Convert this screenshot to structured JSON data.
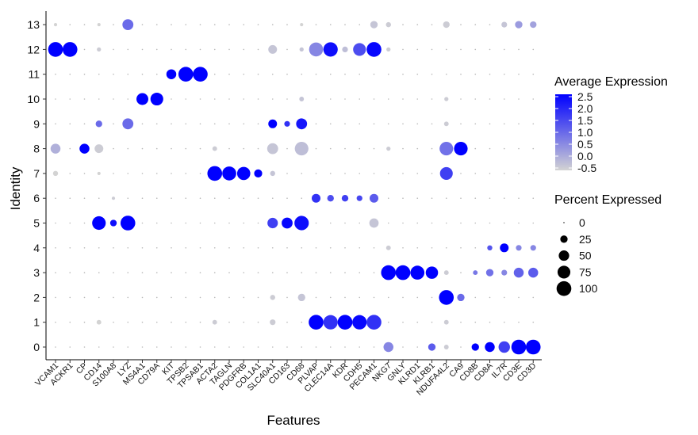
{
  "chart_data": {
    "type": "dotplot",
    "xlabel": "Features",
    "ylabel": "Identity",
    "features": [
      "VCAM1",
      "ACKR1",
      "CP",
      "CD14",
      "S100A8",
      "LYZ",
      "MS4A1",
      "CD79A",
      "KIT",
      "TPSB2",
      "TPSAB1",
      "ACTA2",
      "TAGLN",
      "PDGFRB",
      "COL1A1",
      "SLC40A1",
      "CD163",
      "CD68",
      "PLVAP",
      "CLEC14A",
      "KDR",
      "CDH5",
      "PECAM1",
      "NKG7",
      "GNLY",
      "KLRD1",
      "KLRB1",
      "NDUFA4L2",
      "CA9",
      "CD8B",
      "CD8A",
      "IL7R",
      "CD3E",
      "CD3D"
    ],
    "identities": [
      "0",
      "1",
      "2",
      "3",
      "4",
      "5",
      "6",
      "7",
      "8",
      "9",
      "10",
      "11",
      "12",
      "13"
    ],
    "dots": [
      {
        "id": "12",
        "f": "VCAM1",
        "avg": 2.5,
        "pct": 100
      },
      {
        "id": "12",
        "f": "ACKR1",
        "avg": 2.5,
        "pct": 100
      },
      {
        "id": "12",
        "f": "CD14",
        "avg": -0.4,
        "pct": 8
      },
      {
        "id": "12",
        "f": "SLC40A1",
        "avg": -0.3,
        "pct": 35
      },
      {
        "id": "12",
        "f": "CD68",
        "avg": -0.3,
        "pct": 8
      },
      {
        "id": "12",
        "f": "PLVAP",
        "avg": 0.6,
        "pct": 90
      },
      {
        "id": "12",
        "f": "CLEC14A",
        "avg": 2.3,
        "pct": 95
      },
      {
        "id": "12",
        "f": "KDR",
        "avg": -0.2,
        "pct": 15
      },
      {
        "id": "12",
        "f": "CDH5",
        "avg": 1.4,
        "pct": 75
      },
      {
        "id": "12",
        "f": "PECAM1",
        "avg": 2.4,
        "pct": 100
      },
      {
        "id": "12",
        "f": "NKG7",
        "avg": -0.4,
        "pct": 8
      },
      {
        "id": "13",
        "f": "VCAM1",
        "avg": -0.5,
        "pct": 5
      },
      {
        "id": "13",
        "f": "CD14",
        "avg": -0.5,
        "pct": 5
      },
      {
        "id": "13",
        "f": "LYZ",
        "avg": 1.0,
        "pct": 55
      },
      {
        "id": "13",
        "f": "CD68",
        "avg": -0.5,
        "pct": 5
      },
      {
        "id": "13",
        "f": "PECAM1",
        "avg": -0.3,
        "pct": 25
      },
      {
        "id": "13",
        "f": "NKG7",
        "avg": -0.4,
        "pct": 12
      },
      {
        "id": "13",
        "f": "NDUFA4L2",
        "avg": -0.4,
        "pct": 20
      },
      {
        "id": "13",
        "f": "IL7R",
        "avg": -0.3,
        "pct": 15
      },
      {
        "id": "13",
        "f": "CD3E",
        "avg": 0.3,
        "pct": 25
      },
      {
        "id": "13",
        "f": "CD3D",
        "avg": 0.2,
        "pct": 20
      },
      {
        "id": "11",
        "f": "KIT",
        "avg": 2.5,
        "pct": 45
      },
      {
        "id": "11",
        "f": "TPSB2",
        "avg": 2.5,
        "pct": 100
      },
      {
        "id": "11",
        "f": "TPSAB1",
        "avg": 2.5,
        "pct": 100
      },
      {
        "id": "10",
        "f": "MS4A1",
        "avg": 2.5,
        "pct": 65
      },
      {
        "id": "10",
        "f": "CD79A",
        "avg": 2.5,
        "pct": 75
      },
      {
        "id": "10",
        "f": "CD68",
        "avg": -0.3,
        "pct": 10
      },
      {
        "id": "10",
        "f": "NDUFA4L2",
        "avg": -0.4,
        "pct": 8
      },
      {
        "id": "9",
        "f": "CD14",
        "avg": 1.0,
        "pct": 20
      },
      {
        "id": "9",
        "f": "LYZ",
        "avg": 1.0,
        "pct": 55
      },
      {
        "id": "9",
        "f": "SLC40A1",
        "avg": 2.5,
        "pct": 35
      },
      {
        "id": "9",
        "f": "CD163",
        "avg": 1.8,
        "pct": 15
      },
      {
        "id": "9",
        "f": "CD68",
        "avg": 2.2,
        "pct": 55
      },
      {
        "id": "9",
        "f": "NDUFA4L2",
        "avg": -0.4,
        "pct": 10
      },
      {
        "id": "8",
        "f": "VCAM1",
        "avg": 0.0,
        "pct": 45
      },
      {
        "id": "8",
        "f": "CP",
        "avg": 2.5,
        "pct": 45
      },
      {
        "id": "8",
        "f": "CD14",
        "avg": -0.4,
        "pct": 35
      },
      {
        "id": "8",
        "f": "ACTA2",
        "avg": -0.4,
        "pct": 10
      },
      {
        "id": "8",
        "f": "SLC40A1",
        "avg": -0.3,
        "pct": 55
      },
      {
        "id": "8",
        "f": "CD68",
        "avg": -0.2,
        "pct": 85
      },
      {
        "id": "8",
        "f": "NKG7",
        "avg": -0.4,
        "pct": 8
      },
      {
        "id": "8",
        "f": "NDUFA4L2",
        "avg": 0.9,
        "pct": 85
      },
      {
        "id": "8",
        "f": "CA9",
        "avg": 2.5,
        "pct": 85
      },
      {
        "id": "7",
        "f": "VCAM1",
        "avg": -0.5,
        "pct": 12
      },
      {
        "id": "7",
        "f": "CD14",
        "avg": -0.5,
        "pct": 5
      },
      {
        "id": "7",
        "f": "ACTA2",
        "avg": 2.5,
        "pct": 100
      },
      {
        "id": "7",
        "f": "TAGLN",
        "avg": 2.5,
        "pct": 90
      },
      {
        "id": "7",
        "f": "PDGFRB",
        "avg": 2.5,
        "pct": 80
      },
      {
        "id": "7",
        "f": "COL1A1",
        "avg": 2.5,
        "pct": 30
      },
      {
        "id": "7",
        "f": "SLC40A1",
        "avg": -0.3,
        "pct": 12
      },
      {
        "id": "7",
        "f": "NDUFA4L2",
        "avg": 1.6,
        "pct": 75
      },
      {
        "id": "6",
        "f": "PLVAP",
        "avg": 1.8,
        "pct": 35
      },
      {
        "id": "6",
        "f": "CLEC14A",
        "avg": 1.4,
        "pct": 20
      },
      {
        "id": "6",
        "f": "KDR",
        "avg": 1.6,
        "pct": 20
      },
      {
        "id": "6",
        "f": "CDH5",
        "avg": 1.5,
        "pct": 15
      },
      {
        "id": "6",
        "f": "PECAM1",
        "avg": 1.2,
        "pct": 35
      },
      {
        "id": "6",
        "f": "S100A8",
        "avg": -0.4,
        "pct": 5
      },
      {
        "id": "5",
        "f": "CD14",
        "avg": 2.5,
        "pct": 85
      },
      {
        "id": "5",
        "f": "S100A8",
        "avg": 2.3,
        "pct": 20
      },
      {
        "id": "5",
        "f": "LYZ",
        "avg": 2.5,
        "pct": 100
      },
      {
        "id": "5",
        "f": "SLC40A1",
        "avg": 1.6,
        "pct": 50
      },
      {
        "id": "5",
        "f": "CD163",
        "avg": 2.4,
        "pct": 55
      },
      {
        "id": "5",
        "f": "CD68",
        "avg": 2.3,
        "pct": 95
      },
      {
        "id": "5",
        "f": "PECAM1",
        "avg": -0.3,
        "pct": 40
      },
      {
        "id": "4",
        "f": "NKG7",
        "avg": -0.4,
        "pct": 10
      },
      {
        "id": "4",
        "f": "CD8A",
        "avg": 1.3,
        "pct": 12
      },
      {
        "id": "4",
        "f": "IL7R",
        "avg": 2.5,
        "pct": 35
      },
      {
        "id": "4",
        "f": "CD3E",
        "avg": 0.6,
        "pct": 15
      },
      {
        "id": "4",
        "f": "CD3D",
        "avg": 0.6,
        "pct": 15
      },
      {
        "id": "3",
        "f": "NKG7",
        "avg": 2.5,
        "pct": 100
      },
      {
        "id": "3",
        "f": "GNLY",
        "avg": 2.5,
        "pct": 100
      },
      {
        "id": "3",
        "f": "KLRD1",
        "avg": 2.5,
        "pct": 90
      },
      {
        "id": "3",
        "f": "KLRB1",
        "avg": 2.5,
        "pct": 70
      },
      {
        "id": "3",
        "f": "NDUFA4L2",
        "avg": -0.4,
        "pct": 10
      },
      {
        "id": "3",
        "f": "CD8B",
        "avg": 0.8,
        "pct": 10
      },
      {
        "id": "3",
        "f": "CD8A",
        "avg": 0.9,
        "pct": 25
      },
      {
        "id": "3",
        "f": "IL7R",
        "avg": 0.6,
        "pct": 15
      },
      {
        "id": "3",
        "f": "CD3E",
        "avg": 1.1,
        "pct": 45
      },
      {
        "id": "3",
        "f": "CD3D",
        "avg": 1.2,
        "pct": 45
      },
      {
        "id": "2",
        "f": "SLC40A1",
        "avg": -0.4,
        "pct": 12
      },
      {
        "id": "2",
        "f": "CD68",
        "avg": -0.3,
        "pct": 25
      },
      {
        "id": "2",
        "f": "NDUFA4L2",
        "avg": 2.5,
        "pct": 100
      },
      {
        "id": "2",
        "f": "CA9",
        "avg": 1.0,
        "pct": 25
      },
      {
        "id": "1",
        "f": "CD14",
        "avg": -0.5,
        "pct": 10
      },
      {
        "id": "1",
        "f": "ACTA2",
        "avg": -0.4,
        "pct": 10
      },
      {
        "id": "1",
        "f": "SLC40A1",
        "avg": -0.4,
        "pct": 15
      },
      {
        "id": "1",
        "f": "PLVAP",
        "avg": 2.5,
        "pct": 100
      },
      {
        "id": "1",
        "f": "CLEC14A",
        "avg": 1.8,
        "pct": 95
      },
      {
        "id": "1",
        "f": "KDR",
        "avg": 2.5,
        "pct": 100
      },
      {
        "id": "1",
        "f": "CDH5",
        "avg": 2.4,
        "pct": 95
      },
      {
        "id": "1",
        "f": "PECAM1",
        "avg": 1.8,
        "pct": 100
      },
      {
        "id": "1",
        "f": "NDUFA4L2",
        "avg": -0.4,
        "pct": 10
      },
      {
        "id": "0",
        "f": "NKG7",
        "avg": 0.6,
        "pct": 45
      },
      {
        "id": "0",
        "f": "KLRB1",
        "avg": 1.2,
        "pct": 25
      },
      {
        "id": "0",
        "f": "NDUFA4L2",
        "avg": -0.4,
        "pct": 10
      },
      {
        "id": "0",
        "f": "CD8B",
        "avg": 2.5,
        "pct": 25
      },
      {
        "id": "0",
        "f": "CD8A",
        "avg": 2.5,
        "pct": 45
      },
      {
        "id": "0",
        "f": "IL7R",
        "avg": 1.6,
        "pct": 60
      },
      {
        "id": "0",
        "f": "CD3E",
        "avg": 2.5,
        "pct": 100
      },
      {
        "id": "0",
        "f": "CD3D",
        "avg": 2.5,
        "pct": 100
      }
    ],
    "color_scale": {
      "title": "Average Expression",
      "low_color": "#d3d3d3",
      "high_color": "#0000ff",
      "min": -0.5,
      "max": 2.5,
      "breaks": [
        "2.5",
        "2.0",
        "1.5",
        "1.0",
        "0.5",
        "0.0",
        "-0.5"
      ]
    },
    "size_scale": {
      "title": "Percent Expressed",
      "breaks": [
        "0",
        "25",
        "50",
        "75",
        "100"
      ]
    },
    "legend_position": "right",
    "grid": false
  }
}
